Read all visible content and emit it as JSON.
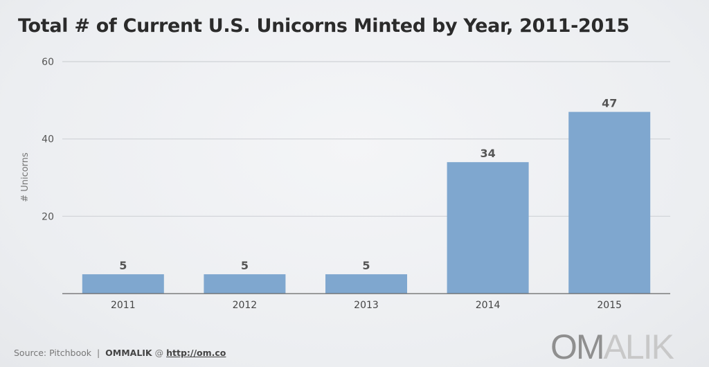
{
  "chart_data": {
    "type": "bar",
    "title": "Total # of Current U.S. Unicorns Minted by Year, 2011-2015",
    "xlabel": "",
    "ylabel": "# Unicorns",
    "categories": [
      "2011",
      "2012",
      "2013",
      "2014",
      "2015"
    ],
    "values": [
      5,
      5,
      5,
      34,
      47
    ],
    "ylim": [
      0,
      60
    ],
    "yticks": [
      20,
      40,
      60
    ],
    "grid": true,
    "bar_color": "#7fa7cf",
    "data_labels": true
  },
  "footer": {
    "source": "Source: Pitchbook",
    "brand": "OMMALIK",
    "at": "@",
    "url": "http://om.co"
  },
  "logo": {
    "part1": "OM",
    "part2": "ALIK"
  }
}
